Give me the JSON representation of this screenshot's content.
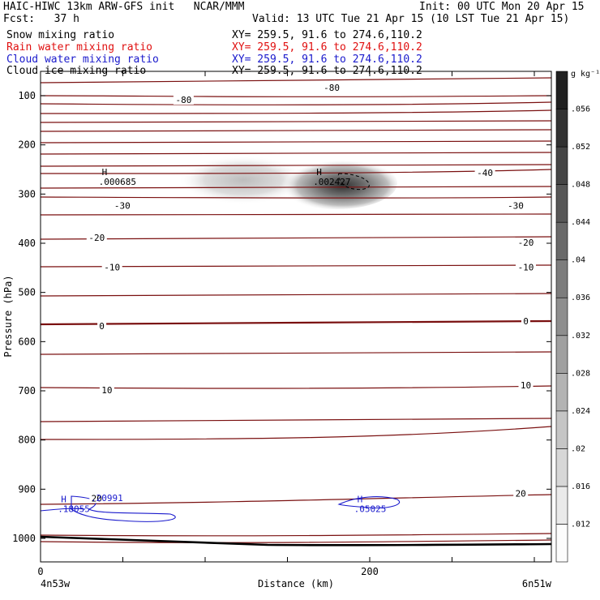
{
  "header": {
    "title": "HAIC-HIWC 13km ARW-GFS init   NCAR/MMM",
    "init": "Init: 00 UTC Mon 20 Apr 15",
    "fcst": "Fcst:   37 h",
    "valid": "Valid: 13 UTC Tue 21 Apr 15 (10 LST Tue 21 Apr 15)",
    "fields": [
      {
        "name": "Snow mixing ratio",
        "xy": "XY= 259.5, 91.6 to 274.6,110.2",
        "color": "#000000"
      },
      {
        "name": "Rain water mixing ratio",
        "xy": "XY= 259.5, 91.6 to 274.6,110.2",
        "color": "#e01010"
      },
      {
        "name": "Cloud water mixing ratio",
        "xy": "XY= 259.5, 91.6 to 274.6,110.2",
        "color": "#1a1acc"
      },
      {
        "name": "Cloud ice mixing ratio",
        "xy": "XY= 259.5, 91.6 to 274.6,110.2",
        "color": "#000000"
      }
    ]
  },
  "chart_data": {
    "type": "cross-section",
    "ylabel": "Pressure (hPa)",
    "xlabel": "Distance (km)",
    "y_ticks": [
      100,
      200,
      300,
      400,
      500,
      600,
      700,
      800,
      900,
      1000
    ],
    "x_ticks": [
      0,
      200
    ],
    "x_end_labels": {
      "left": "4n53w",
      "right": "6n51w"
    },
    "colorbar": {
      "unit": "g kg⁻¹",
      "labels": [
        ".012",
        ".016",
        ".02",
        ".024",
        ".028",
        ".032",
        ".036",
        ".04",
        ".044",
        ".048",
        ".052",
        ".056"
      ]
    },
    "temperature_contours": [
      {
        "label": "-80",
        "x": 0.28,
        "y_hpa": 110
      },
      {
        "label": "-80",
        "x": 0.57,
        "y_hpa": 85
      },
      {
        "label": "-40",
        "x": 0.87,
        "y_hpa": 258
      },
      {
        "label": "-30",
        "x": 0.16,
        "y_hpa": 325
      },
      {
        "label": "-30",
        "x": 0.93,
        "y_hpa": 325
      },
      {
        "label": "-20",
        "x": 0.11,
        "y_hpa": 390
      },
      {
        "label": "-20",
        "x": 0.95,
        "y_hpa": 400
      },
      {
        "label": "-10",
        "x": 0.14,
        "y_hpa": 450
      },
      {
        "label": "-10",
        "x": 0.95,
        "y_hpa": 450
      },
      {
        "label": "0",
        "x": 0.12,
        "y_hpa": 570
      },
      {
        "label": "0",
        "x": 0.95,
        "y_hpa": 560
      },
      {
        "label": "10",
        "x": 0.13,
        "y_hpa": 700
      },
      {
        "label": "10",
        "x": 0.95,
        "y_hpa": 690
      },
      {
        "label": "20",
        "x": 0.11,
        "y_hpa": 920
      },
      {
        "label": "20",
        "x": 0.94,
        "y_hpa": 910
      }
    ],
    "maxima": [
      {
        "mark": "H",
        "value": ".000685",
        "x": 0.12,
        "y_hpa": 275,
        "color": "#000000"
      },
      {
        "mark": "H",
        "value": ".002427",
        "x": 0.54,
        "y_hpa": 275,
        "color": "#000000"
      },
      {
        "mark": "H",
        "value": ".18055",
        "x": 0.04,
        "y_hpa": 940,
        "color": "#1a1acc"
      },
      {
        "mark": "H",
        "value": ".05025",
        "x": 0.62,
        "y_hpa": 940,
        "color": "#1a1acc"
      }
    ],
    "cloud_water_label": ".20991"
  }
}
